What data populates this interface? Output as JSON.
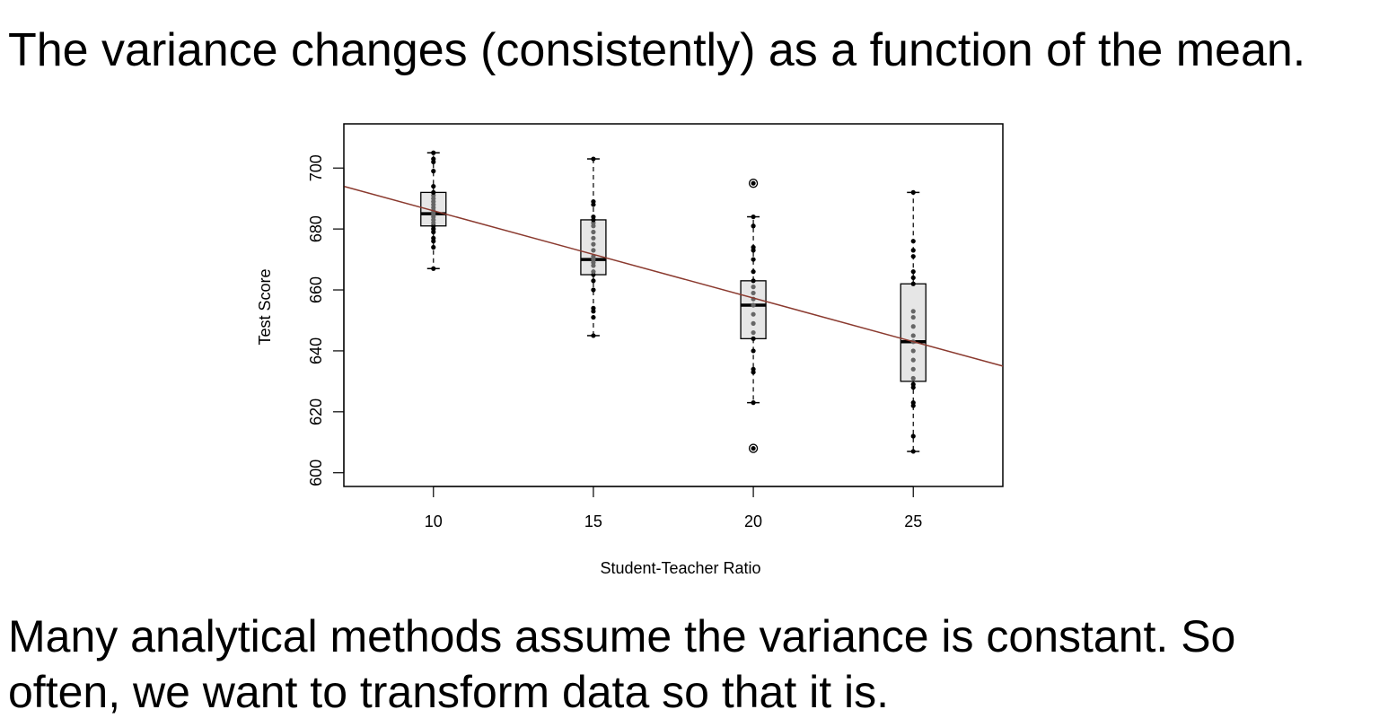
{
  "slide": {
    "title": "The variance changes (consistently) as a function of the mean.",
    "footer_line1": "Many analytical methods assume the variance is constant.  So",
    "footer_line2": "often, we want to transform data so that it is."
  },
  "chart_data": {
    "type": "boxplot",
    "xlabel": "Student-Teacher Ratio",
    "ylabel": "Test Score",
    "xlim": [
      7.2,
      27.8
    ],
    "ylim": [
      595.5,
      714.5
    ],
    "x_ticks": [
      10,
      15,
      20,
      25
    ],
    "y_ticks": [
      600,
      620,
      640,
      660,
      680,
      700
    ],
    "grid": false,
    "legend": "none",
    "colors": {
      "box_fill": "#e6e6e6",
      "point": "#000000",
      "inner_point": "#666666",
      "regression_line": "#8b3a2f"
    },
    "boxes": [
      {
        "x": 10,
        "whisker_low": 667,
        "q1": 681,
        "median": 685,
        "q3": 692,
        "whisker_high": 705,
        "outliers": [],
        "points": [
          667,
          674,
          676,
          677,
          679,
          680,
          681,
          682,
          683,
          684,
          685,
          686,
          687,
          688,
          689,
          690,
          691,
          692,
          694,
          699,
          702,
          703,
          705
        ]
      },
      {
        "x": 15,
        "whisker_low": 645,
        "q1": 665,
        "median": 670,
        "q3": 683,
        "whisker_high": 703,
        "outliers": [],
        "points": [
          645,
          651,
          653,
          654,
          660,
          663,
          665,
          666,
          668,
          669,
          670,
          671,
          673,
          675,
          677,
          679,
          681,
          682,
          683,
          684,
          688,
          689,
          703
        ]
      },
      {
        "x": 20,
        "whisker_low": 623,
        "q1": 644,
        "median": 655,
        "q3": 663,
        "whisker_high": 684,
        "outliers": [
          608,
          695
        ],
        "points": [
          608,
          623,
          633,
          634,
          640,
          644,
          646,
          649,
          652,
          655,
          657,
          659,
          661,
          663,
          666,
          670,
          673,
          674,
          681,
          684,
          695
        ]
      },
      {
        "x": 25,
        "whisker_low": 607,
        "q1": 630,
        "median": 643,
        "q3": 662,
        "whisker_high": 692,
        "outliers": [],
        "points": [
          607,
          612,
          622,
          623,
          628,
          629,
          631,
          634,
          637,
          640,
          643,
          645,
          648,
          651,
          653,
          662,
          664,
          666,
          671,
          673,
          676,
          692
        ]
      }
    ],
    "regression_line": {
      "x": [
        7.2,
        27.8
      ],
      "y": [
        694,
        635
      ]
    }
  }
}
